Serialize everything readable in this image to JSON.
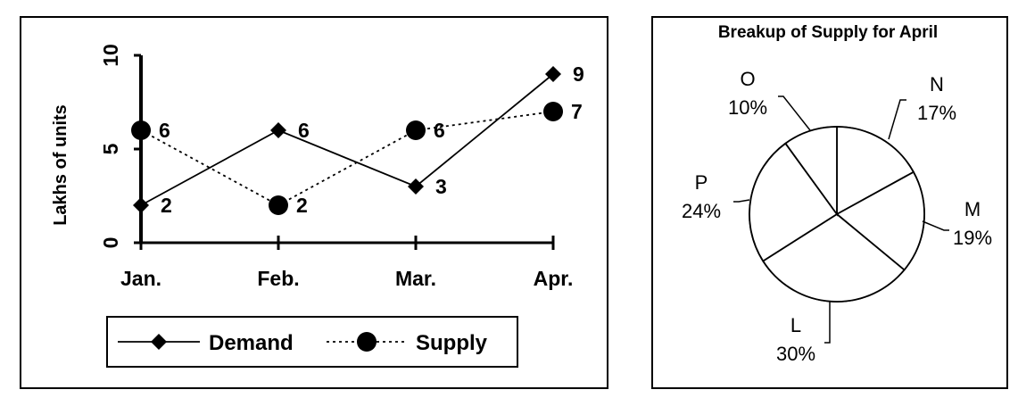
{
  "chart_data": [
    {
      "type": "line",
      "ylabel": "Lakhs of units",
      "ylim": [
        0,
        10
      ],
      "y_ticks": [
        "0",
        "5",
        "10"
      ],
      "categories": [
        "Jan.",
        "Feb.",
        "Mar.",
        "Apr."
      ],
      "legend_position": "bottom",
      "series": [
        {
          "name": "Demand",
          "values": [
            2,
            6,
            3,
            9
          ],
          "marker": "diamond",
          "line": "solid"
        },
        {
          "name": "Supply",
          "values": [
            6,
            2,
            6,
            7
          ],
          "marker": "circle",
          "line": "dotted"
        }
      ],
      "data_labels": {
        "Demand": [
          "2",
          "6",
          "3",
          "9"
        ],
        "Supply": [
          "6",
          "2",
          "6",
          "7"
        ]
      }
    },
    {
      "type": "pie",
      "title": "Breakup of Supply for April",
      "slices": [
        {
          "name": "N",
          "value": 17,
          "label": "17%"
        },
        {
          "name": "M",
          "value": 19,
          "label": "19%"
        },
        {
          "name": "L",
          "value": 30,
          "label": "30%"
        },
        {
          "name": "P",
          "value": 24,
          "label": "24%"
        },
        {
          "name": "O",
          "value": 10,
          "label": "10%"
        }
      ]
    }
  ]
}
